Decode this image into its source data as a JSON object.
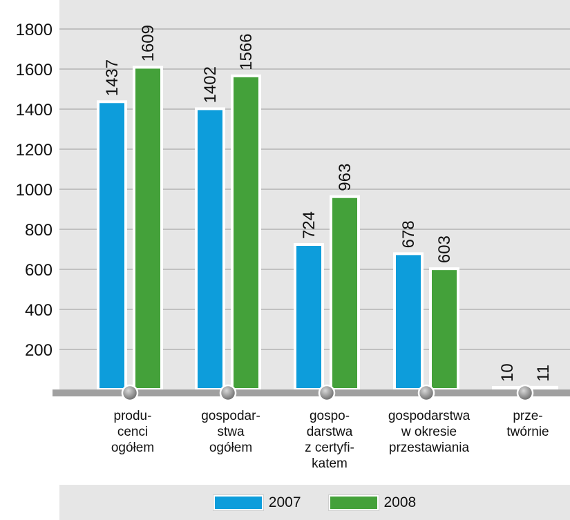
{
  "chart_data": {
    "type": "bar",
    "categories": [
      [
        "produ-",
        "cenci",
        "ogółem"
      ],
      [
        "gospodar-",
        "stwa",
        "ogółem"
      ],
      [
        "gospo-",
        "darstwa",
        "z certyfi-",
        "katem"
      ],
      [
        "gospodarstwa",
        "w okresie",
        "przestawiania"
      ],
      [
        "prze-",
        "twórnie"
      ]
    ],
    "series": [
      {
        "name": "2007",
        "values": [
          1437,
          1402,
          724,
          678,
          10
        ]
      },
      {
        "name": "2008",
        "values": [
          1609,
          1566,
          963,
          603,
          11
        ]
      }
    ],
    "yticks": [
      200,
      400,
      600,
      800,
      1000,
      1200,
      1400,
      1600,
      1800
    ],
    "ylim": [
      0,
      1800
    ],
    "grid": true,
    "legend_position": "bottom",
    "colors": {
      "plot_background": "#e6e6e6",
      "gridline": "#b3b3b3",
      "axis": "#a0a0a0",
      "series_2007": "#0d9ddb",
      "series_2008": "#44a13a"
    }
  }
}
